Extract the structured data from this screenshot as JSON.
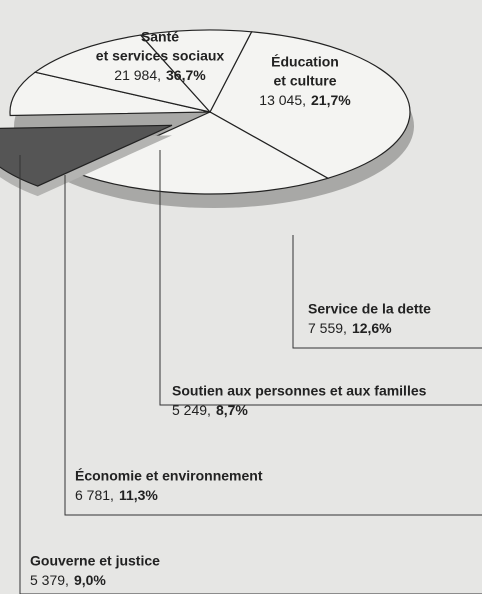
{
  "chart_data": {
    "type": "pie",
    "categories": [
      [
        "Santé",
        "et services sociaux"
      ],
      [
        "Éducation",
        "et culture"
      ],
      [
        "Service de la dette"
      ],
      [
        "Soutien aux personnes et aux familles"
      ],
      [
        "Économie et environnement"
      ],
      [
        "Gouverne et justice"
      ]
    ],
    "values": [
      21984,
      13045,
      7559,
      5249,
      6781,
      5379
    ],
    "value_labels": [
      "21 984,",
      "13 045,",
      "7 559,",
      "5 249,",
      "6 781,",
      "5 379,"
    ],
    "percentages": [
      36.7,
      21.7,
      12.6,
      8.7,
      11.3,
      9.0
    ],
    "percent_labels": [
      "36,7%",
      "21,7%",
      "12,6%",
      "8,7%",
      "11,3%",
      "9,0%"
    ],
    "colors": [
      "#f4f4f2",
      "#f4f4f2",
      "#555555",
      "#f4f4f2",
      "#f4f4f2",
      "#f4f4f2"
    ],
    "exploded": [
      false,
      false,
      true,
      false,
      false,
      false
    ]
  }
}
